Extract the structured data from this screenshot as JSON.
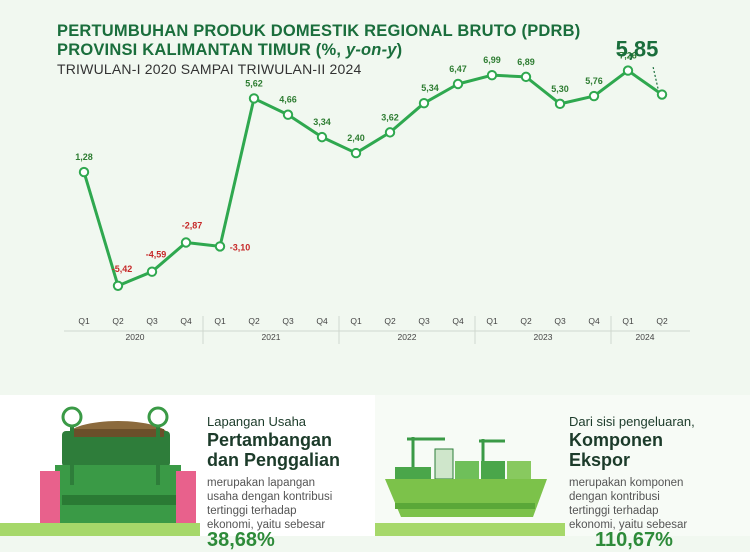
{
  "header": {
    "title_line1": "PERTUMBUHAN PRODUK DOMESTIK REGIONAL BRUTO (PDRB)",
    "title_line2_prefix": "PROVINSI KALIMANTAN TIMUR (%, ",
    "title_line2_italic": "y-on-y",
    "title_line2_suffix": ")",
    "subtitle": "TRIWULAN-I 2020 SAMPAI TRIWULAN-II 2024"
  },
  "chart_data": {
    "type": "line",
    "title": "PERTUMBUHAN PRODUK DOMESTIK REGIONAL BRUTO (PDRB) PROVINSI KALIMANTAN TIMUR (%, y-on-y)",
    "categories": [
      "Q1",
      "Q2",
      "Q3",
      "Q4",
      "Q1",
      "Q2",
      "Q3",
      "Q4",
      "Q1",
      "Q2",
      "Q3",
      "Q4",
      "Q1",
      "Q2",
      "Q3",
      "Q4",
      "Q1",
      "Q2"
    ],
    "years": [
      {
        "label": "2020",
        "start": 0,
        "end": 3
      },
      {
        "label": "2021",
        "start": 4,
        "end": 7
      },
      {
        "label": "2022",
        "start": 8,
        "end": 11
      },
      {
        "label": "2023",
        "start": 12,
        "end": 15
      },
      {
        "label": "2024",
        "start": 16,
        "end": 17
      }
    ],
    "series": [
      {
        "values": [
          1.28,
          -5.42,
          -4.59,
          -2.87,
          -3.1,
          5.62,
          4.66,
          3.34,
          2.4,
          3.62,
          5.34,
          6.47,
          6.99,
          6.89,
          5.3,
          5.76,
          7.26,
          5.85
        ]
      }
    ],
    "labels": [
      "1,28",
      "-5,42",
      "-4,59",
      "-2,87",
      "-3,10",
      "5,62",
      "4,66",
      "3,34",
      "2,40",
      "3,62",
      "5,34",
      "6,47",
      "6,99",
      "6,89",
      "5,30",
      "5,76",
      "7,26",
      "5,85"
    ],
    "highlight_index": 17,
    "colors": {
      "line": "#2fa84f",
      "positive_label": "#2e7d32",
      "negative_label": "#c62828",
      "highlight": "#1a6e3c"
    }
  },
  "panels": {
    "left": {
      "small_label": "Lapangan Usaha",
      "big_line1": "Pertambangan",
      "big_line2": "dan Penggalian",
      "desc_line1": "merupakan lapangan",
      "desc_line2": "usaha dengan kontribusi",
      "desc_line3": "tertinggi terhadap",
      "desc_line4": "ekonomi, yaitu sebesar",
      "value": "38,68%",
      "icon": "mining-cart-icon"
    },
    "right": {
      "small_label": "Dari sisi pengeluaran,",
      "big_line1": "Komponen",
      "big_line2": "Ekspor",
      "desc_line1": "merupakan komponen",
      "desc_line2": "dengan kontribusi",
      "desc_line3": "tertinggi terhadap",
      "desc_line4": "ekonomi, yaitu sebesar",
      "value": "110,67%",
      "icon": "cargo-ship-icon"
    }
  }
}
